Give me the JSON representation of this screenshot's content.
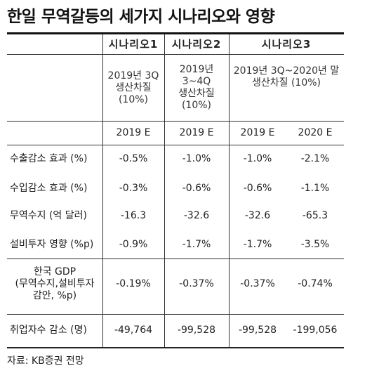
{
  "title": "한일 무역갈등의 세가지 시나리오와 영향",
  "scenarios": [
    {
      "name": "시나리오1",
      "desc": "2019년 3Q\n생산차질\n(10%)"
    },
    {
      "name": "시나리오2",
      "desc": "2019년\n3~4Q\n생산차질\n(10%)"
    },
    {
      "name": "시나리오3",
      "desc": "2019년 3Q~2020년 말\n생산차질 (10%)"
    }
  ],
  "years": [
    "2019 E",
    "2019 E",
    "2019 E",
    "2020 E"
  ],
  "rows": [
    {
      "label": "수출감소 효과 (%)",
      "values": [
        "-0.5%",
        "-1.0%",
        "-1.0%",
        "-2.1%"
      ]
    },
    {
      "label": "수입감소 효과 (%)",
      "values": [
        "-0.3%",
        "-0.6%",
        "-0.6%",
        "-1.1%"
      ]
    },
    {
      "label": "무역수지 (억 달러)",
      "values": [
        "-16.3",
        "-32.6",
        "-32.6",
        "-65.3"
      ]
    },
    {
      "label": "설비투자 영향 (%p)",
      "values": [
        "-0.9%",
        "-1.7%",
        "-1.7%",
        "-3.5%"
      ]
    },
    {
      "label": "한국 GDP\n(무역수지,설비투자\n감안, %p)",
      "values": [
        "-0.19%",
        "-0.37%",
        "-0.37%",
        "-0.74%"
      ]
    },
    {
      "label": "취업자수 감소 (명)",
      "values": [
        "-49,764",
        "-99,528",
        "-99,528",
        "-199,056"
      ]
    }
  ],
  "source": "자료: KB증권 전망"
}
